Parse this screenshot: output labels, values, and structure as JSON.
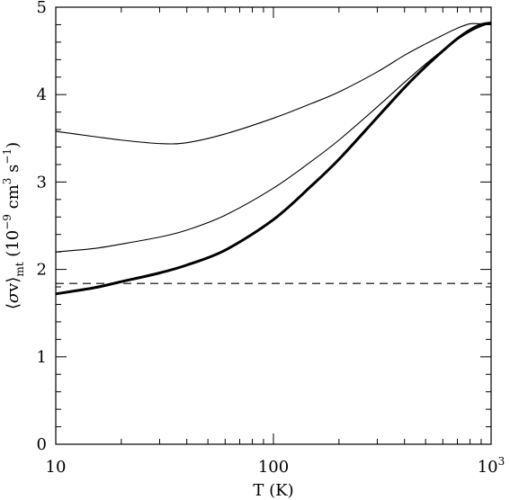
{
  "chart_data": {
    "type": "line",
    "title": "",
    "xlabel": "T (K)",
    "ylabel": {
      "bracket_open": "⟨",
      "sigma": "σ",
      "v": "v",
      "bracket_close": "⟩",
      "subscript": "mt",
      "units_open": "(10",
      "exp1": "−9",
      "cm": "cm",
      "exp2": "3",
      "s": "s",
      "exp3": "−1",
      "units_close": ")"
    },
    "x_scale": "log",
    "xlim": [
      10,
      1000
    ],
    "ylim": [
      0,
      5
    ],
    "x_ticks": [
      {
        "value": 10,
        "base": "10",
        "exp": ""
      },
      {
        "value": 100,
        "base": "100",
        "exp": ""
      },
      {
        "value": 1000,
        "base": "10",
        "exp": "3"
      }
    ],
    "y_ticks": [
      {
        "value": 0,
        "label": "0"
      },
      {
        "value": 1,
        "label": "1"
      },
      {
        "value": 2,
        "label": "2"
      },
      {
        "value": 3,
        "label": "3"
      },
      {
        "value": 4,
        "label": "4"
      },
      {
        "value": 5,
        "label": "5"
      }
    ],
    "grid": false,
    "legend": "none",
    "series": [
      {
        "style": "thin",
        "x": [
          10,
          15,
          20,
          30,
          40,
          60,
          100,
          150,
          200,
          300,
          400,
          500,
          600,
          700,
          800,
          900,
          1000
        ],
        "y": [
          3.58,
          3.52,
          3.48,
          3.44,
          3.45,
          3.55,
          3.73,
          3.9,
          4.03,
          4.26,
          4.45,
          4.58,
          4.68,
          4.76,
          4.81,
          4.81,
          4.82
        ]
      },
      {
        "style": "thin",
        "x": [
          10,
          15,
          20,
          30,
          40,
          60,
          100,
          150,
          200,
          300,
          400,
          500,
          600,
          700,
          800,
          900,
          1000
        ],
        "y": [
          2.2,
          2.24,
          2.29,
          2.37,
          2.45,
          2.62,
          2.93,
          3.24,
          3.48,
          3.86,
          4.14,
          4.35,
          4.51,
          4.63,
          4.72,
          4.78,
          4.82
        ]
      },
      {
        "style": "thick",
        "x": [
          10,
          15,
          20,
          30,
          40,
          60,
          100,
          150,
          200,
          300,
          400,
          500,
          600,
          700,
          800,
          900,
          1000
        ],
        "y": [
          1.72,
          1.79,
          1.86,
          1.96,
          2.05,
          2.22,
          2.57,
          2.96,
          3.26,
          3.74,
          4.08,
          4.32,
          4.5,
          4.64,
          4.74,
          4.8,
          4.82
        ]
      },
      {
        "style": "dashed",
        "x": [
          10,
          1000
        ],
        "y": [
          1.84,
          1.84
        ]
      }
    ]
  }
}
